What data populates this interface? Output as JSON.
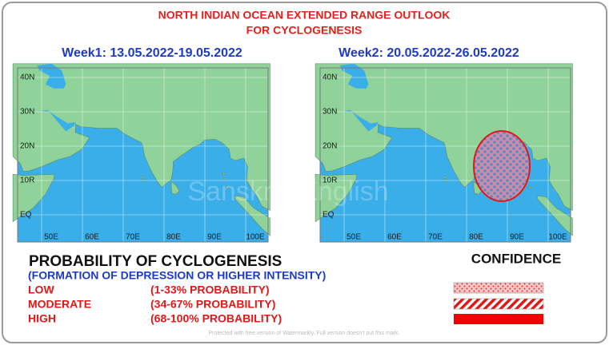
{
  "header": {
    "title_lines": [
      "NORTH INDIAN OCEAN EXTENDED RANGE OUTLOOK",
      "FOR CYCLOGENESIS"
    ]
  },
  "maps": [
    {
      "title": "Week1: 13.05.2022-19.05.2022"
    },
    {
      "title": "Week2: 20.05.2022-26.05.2022"
    }
  ],
  "grid_labels": {
    "lat": [
      "40N",
      "30N",
      "20N",
      "10R",
      "EQ"
    ],
    "lon": [
      "50E",
      "60E",
      "70E",
      "80E",
      "90E",
      "100E"
    ]
  },
  "watermark": "Sanskriti English",
  "legend": {
    "title": "PROBABILITY OF CYCLOGENESIS",
    "subtitle": "(FORMATION OF DEPRESSION OR HIGHER INTENSITY)",
    "confidence_title": "CONFIDENCE",
    "rows": [
      {
        "level": "LOW",
        "range": "(1-33% PROBABILITY)"
      },
      {
        "level": "MODERATE",
        "range": "(34-67% PROBABILITY)"
      },
      {
        "level": "HIGH",
        "range": "(68-100% PROBABILITY)"
      }
    ]
  },
  "footer_note": "Protected with free version of Watermarkly. Full version doesn't put this mark."
}
